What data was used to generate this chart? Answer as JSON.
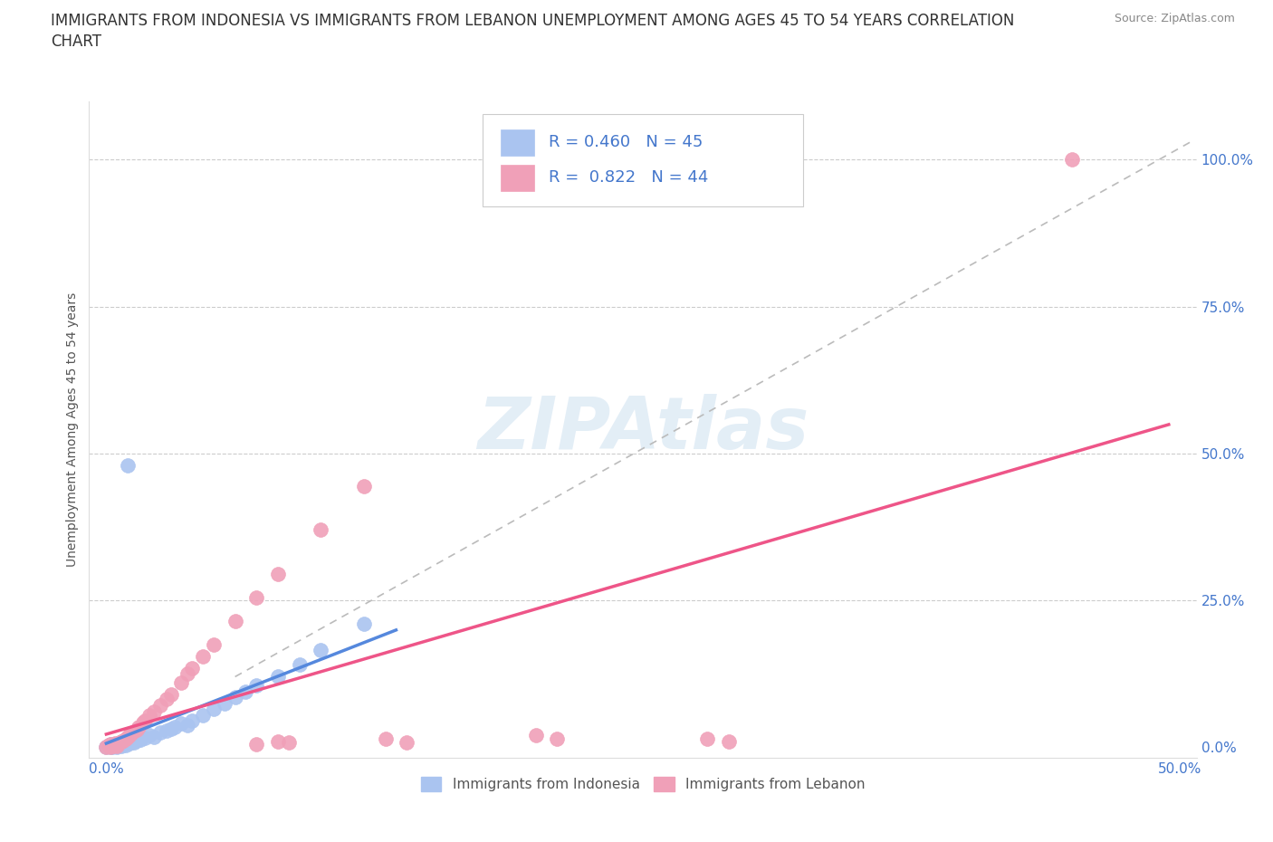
{
  "title_line1": "IMMIGRANTS FROM INDONESIA VS IMMIGRANTS FROM LEBANON UNEMPLOYMENT AMONG AGES 45 TO 54 YEARS CORRELATION",
  "title_line2": "CHART",
  "source": "Source: ZipAtlas.com",
  "ylabel": "Unemployment Among Ages 45 to 54 years",
  "color_indonesia": "#aac4f0",
  "color_lebanon": "#f0a0b8",
  "color_line_indonesia": "#5588dd",
  "color_line_lebanon": "#ee5588",
  "color_dashed": "#bbbbbb",
  "tick_color": "#4477cc",
  "title_fontsize": 12,
  "axis_label_fontsize": 10,
  "tick_fontsize": 11,
  "watermark_text": "ZIPAtlas",
  "legend_text1": "R = 0.460   N = 45",
  "legend_text2": "R =  0.822   N = 44",
  "bottom_legend1": "Immigrants from Indonesia",
  "bottom_legend2": "Immigrants from Lebanon"
}
